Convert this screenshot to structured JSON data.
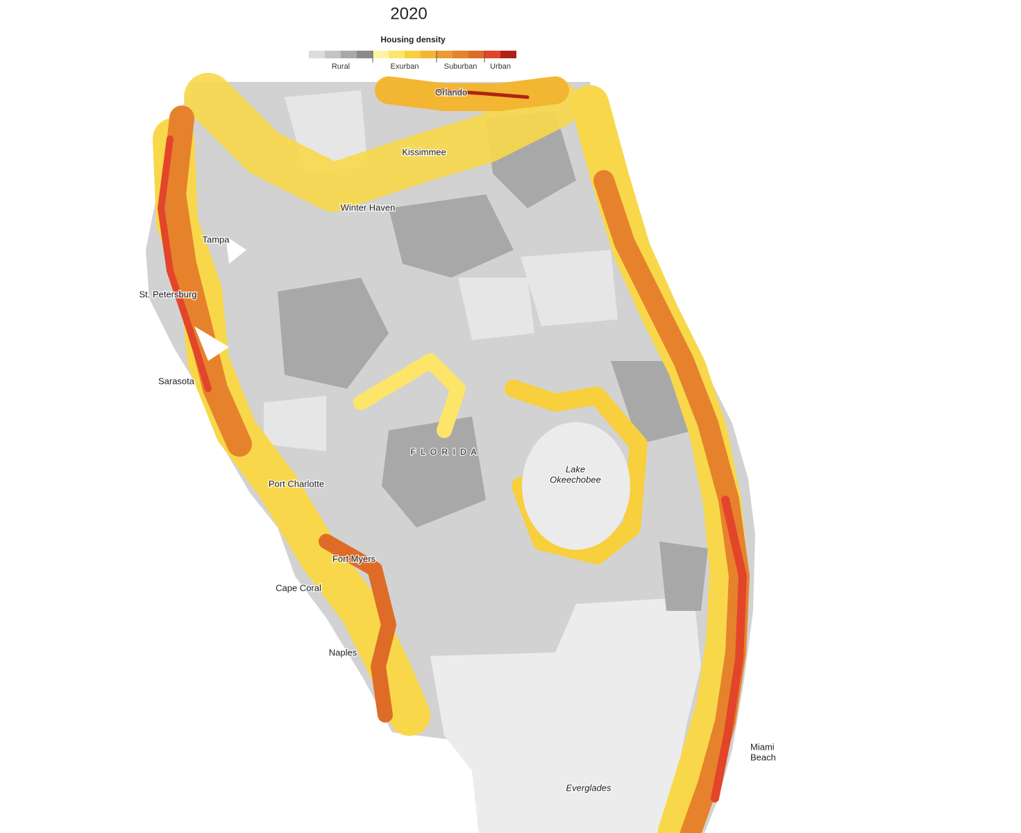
{
  "title": "2020",
  "legend": {
    "title": "Housing density",
    "groups": [
      {
        "label": "Rural",
        "colors": [
          "#dcdcdc",
          "#c4c4c4",
          "#a9a9a9",
          "#8a8a8a"
        ]
      },
      {
        "label": "Exurban",
        "colors": [
          "#fff3a6",
          "#fde56a",
          "#f8cf3c",
          "#f2b632"
        ]
      },
      {
        "label": "Suburban",
        "colors": [
          "#ec9a35",
          "#e6822c",
          "#df6c26"
        ]
      },
      {
        "label": "Urban",
        "colors": [
          "#e2452a",
          "#ad2416"
        ]
      }
    ]
  },
  "places": [
    {
      "lines": [
        "Orlando"
      ]
    },
    {
      "lines": [
        "Kissimmee"
      ]
    },
    {
      "lines": [
        "Winter Haven"
      ]
    },
    {
      "lines": [
        "Tampa"
      ]
    },
    {
      "lines": [
        "St. Petersburg"
      ]
    },
    {
      "lines": [
        "Sarasota"
      ]
    },
    {
      "lines": [
        "Port Charlotte"
      ]
    },
    {
      "lines": [
        "Fort Myers"
      ]
    },
    {
      "lines": [
        "Cape Coral"
      ]
    },
    {
      "lines": [
        "Naples"
      ]
    },
    {
      "lines": [
        "Miami",
        "Beach"
      ]
    },
    {
      "lines": [
        "F L O R I D A"
      ],
      "style": "region"
    },
    {
      "lines": [
        "Lake",
        "Okeechobee"
      ],
      "style": "water"
    },
    {
      "lines": [
        "Everglades"
      ],
      "style": "water"
    }
  ]
}
